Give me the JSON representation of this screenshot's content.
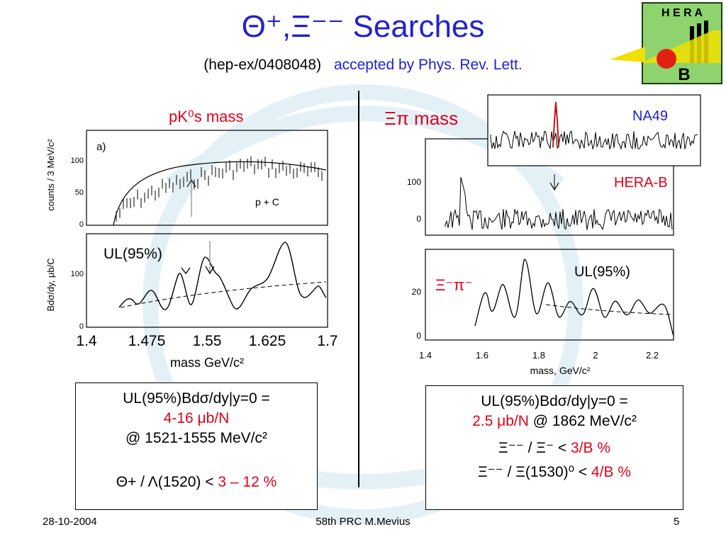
{
  "slide": {
    "title": "Θ⁺,Ξ⁻⁻ Searches",
    "subtitle_ref": "(hep-ex/0408048)",
    "subtitle_status": "accepted by Phys. Rev. Lett.",
    "logo": {
      "top": "H E R A",
      "bottom": "B"
    }
  },
  "left_panel": {
    "title": "pK⁰s mass",
    "panel_a_label": "a)",
    "reaction": "p + C",
    "ul_label": "UL(95%)",
    "ylabel_top": "counts / 3 MeV/c²",
    "ylabel_bottom": "Bdσ/dy, μb/C",
    "xlabel": "mass GeV/c²",
    "x_ticks": [
      "1.4",
      "1.475",
      "1.55",
      "1.625",
      "1.7"
    ],
    "y_ticks_top": [
      "0",
      "50",
      "100"
    ],
    "y_ticks_bottom": [
      "0",
      "100"
    ]
  },
  "right_panel": {
    "title": "Ξπ mass",
    "na49_label": "NA49",
    "herab_label": "HERA-B",
    "ul_label": "UL(95%)",
    "channel_label": "Ξ⁻π⁻",
    "xlabel": "mass, GeV/c²",
    "x_ticks": [
      "1.4",
      "1.6",
      "1.8",
      "2",
      "2.2"
    ],
    "y_ticks_top": [
      "0",
      "100"
    ],
    "y_ticks_bottom": [
      "0",
      "20"
    ]
  },
  "left_box": {
    "line1": "UL(95%)Bdσ/dy|y=0 =",
    "line2": "4-16 μb/N",
    "line3": "@ 1521-1555 MeV/c²",
    "line4_pre": "Θ+ / Λ(1520) <",
    "line4_val": "3 – 12 %"
  },
  "right_box": {
    "line1": "UL(95%)Bdσ/dy|y=0 =",
    "line2_val": "2.5 μb/N",
    "line2_rest": "@ 1862 MeV/c²",
    "line3_pre": "Ξ⁻⁻ / Ξ⁻ <",
    "line3_val": "3/B %",
    "line4_pre": "Ξ⁻⁻ / Ξ(1530)⁰ <",
    "line4_val": "4/B %"
  },
  "footer": {
    "date": "28-10-2004",
    "event": "58th PRC M.Mevius",
    "page": "5"
  }
}
